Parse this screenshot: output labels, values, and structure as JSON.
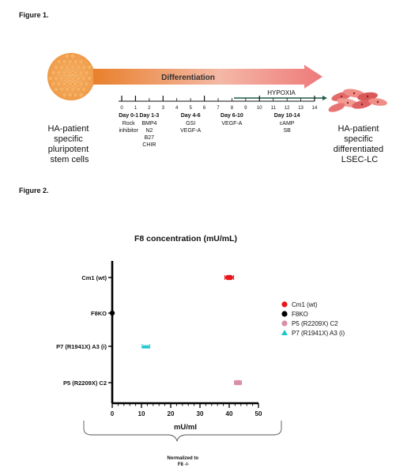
{
  "figure1": {
    "caption": "Figure 1.",
    "left_cell_label": [
      "HA-patient",
      "specific",
      "pluripotent",
      "stem cells"
    ],
    "right_cell_label": [
      "HA-patient",
      "specific",
      "differentiated",
      "LSEC-LC"
    ],
    "differentiation_label": "Differentiation",
    "hypoxia_label": "HYPOXIA",
    "day_ticks": [
      "0",
      "1",
      "2",
      "3",
      "4",
      "5",
      "6",
      "7",
      "8",
      "9",
      "10",
      "11",
      "12",
      "13",
      "14"
    ],
    "stages": [
      {
        "day": "Day 0-1",
        "items": [
          "Rock",
          "inhibitor"
        ]
      },
      {
        "day": "Day 1-3",
        "items": [
          "BMP4",
          "N2",
          "B27",
          "CHIR"
        ]
      },
      {
        "day": "Day 4-6",
        "items": [
          "GSI",
          "VEGF-A"
        ]
      },
      {
        "day": "Day 6-10",
        "items": [
          "VEGF-A"
        ]
      },
      {
        "day": "Day 10-14",
        "items": [
          "cAMP",
          "SB"
        ]
      }
    ]
  },
  "figure2": {
    "caption": "Figure 2.",
    "brace_note": [
      "Normalized to",
      "F8 -/-"
    ]
  },
  "chart_data": {
    "type": "scatter",
    "title": "F8 concentration (mU/mL)",
    "xlabel": "mU/ml",
    "ylabel": "",
    "xlim": [
      0,
      50
    ],
    "xticks": [
      "0",
      "10",
      "20",
      "30",
      "40",
      "50"
    ],
    "categories": [
      "Cm1 (wt)",
      "F8KO",
      "P7 (R1941X) A3 (i)",
      "P5 (R2209X) C2"
    ],
    "legend_position": "right",
    "grid": false,
    "series": [
      {
        "name": "Cm1 (wt)",
        "category": "Cm1 (wt)",
        "value": 40,
        "error": 1.5,
        "color": "#e8161b",
        "marker": "circle"
      },
      {
        "name": "F8KO",
        "category": "F8KO",
        "value": 0,
        "error": 0,
        "color": "#000000",
        "marker": "circle"
      },
      {
        "name": "P5 (R2209X) C2",
        "category": "P5 (R2209X) C2",
        "value": 43,
        "error": 1.2,
        "color": "#d98ea6",
        "marker": "circle"
      },
      {
        "name": "P7 (R1941X) A3 (i)",
        "category": "P7 (R1941X) A3 (i)",
        "value": 11.5,
        "error": 1.3,
        "color": "#19c7cf",
        "marker": "triangle"
      }
    ]
  }
}
